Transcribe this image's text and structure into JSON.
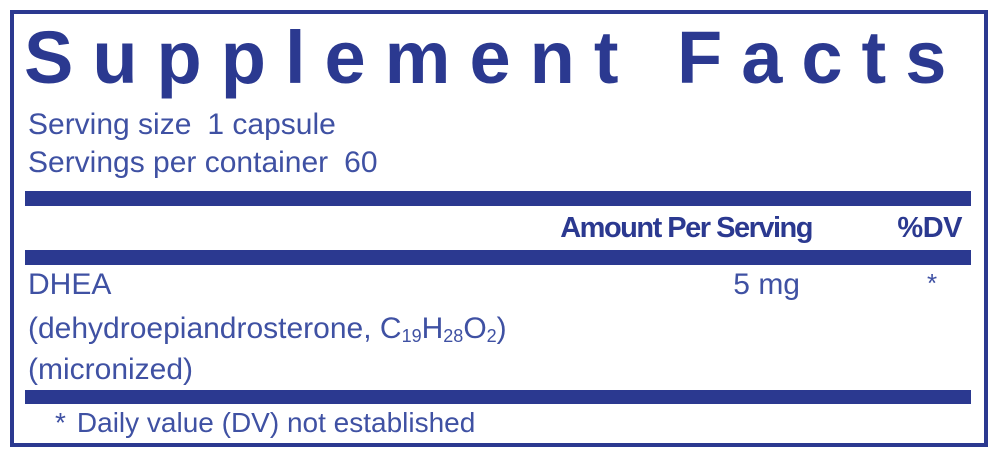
{
  "colors": {
    "navy": "#2b3990",
    "text": "#3f51a3"
  },
  "panel": {
    "title": "Supplement Facts",
    "serving": {
      "size_label": "Serving size",
      "size_value": "1 capsule",
      "container_label": "Servings per container",
      "container_value": "60"
    },
    "columns": {
      "amount": "Amount Per Serving",
      "dv": "%DV"
    },
    "rows": [
      {
        "name": "DHEA",
        "amount": "5 mg",
        "dv": "*",
        "formula": {
          "pre": "(dehydroepiandrosterone, C",
          "sub1": "19",
          "el1": "H",
          "sub2": "28",
          "el2": "O",
          "sub3": "2",
          "post": ")"
        },
        "form_note": "(micronized)"
      }
    ],
    "footnote": {
      "marker": "*",
      "text": "Daily value (DV) not established"
    }
  }
}
